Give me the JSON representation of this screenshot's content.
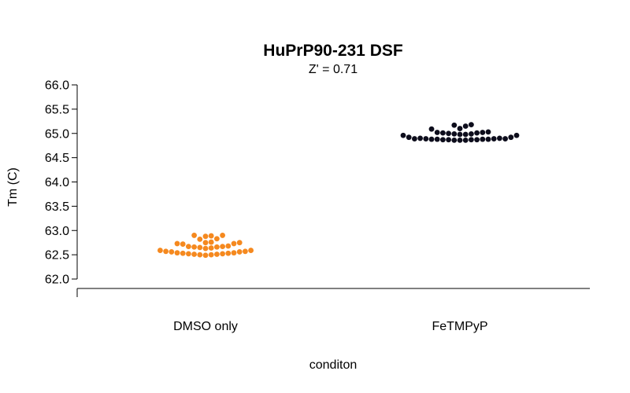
{
  "chart_data": {
    "type": "scatter",
    "subtype": "beeswarm",
    "title": "HuPrP90-231 DSF",
    "subtitle": "Z' = 0.71",
    "xlabel": "conditon",
    "ylabel": "Tm (C)",
    "categories": [
      "DMSO only",
      "FeTMPyP"
    ],
    "ylim": [
      61.8,
      66.2
    ],
    "yticks": [
      62.0,
      62.5,
      63.0,
      63.5,
      64.0,
      64.5,
      65.0,
      65.5,
      66.0
    ],
    "ytick_labels": [
      "62.0",
      "62.5",
      "63.0",
      "63.5",
      "64.0",
      "64.5",
      "65.0",
      "65.5",
      "66.0"
    ],
    "grid": false,
    "legend": "none",
    "series": [
      {
        "category": "DMSO only",
        "color": "#f5891f",
        "values": [
          62.59,
          62.57,
          62.56,
          62.54,
          62.53,
          62.52,
          62.51,
          62.5,
          62.49,
          62.5,
          62.51,
          62.52,
          62.53,
          62.54,
          62.56,
          62.57,
          62.59,
          62.63,
          62.64,
          62.65,
          62.66,
          62.67,
          62.68,
          62.67,
          62.66,
          62.72,
          62.73,
          62.75,
          62.76,
          62.75,
          62.73,
          62.82,
          62.83,
          62.88,
          62.89,
          62.9,
          62.9
        ]
      },
      {
        "category": "FeTMPyP",
        "color": "#0d0d1c",
        "values": [
          64.99,
          64.98,
          64.96,
          64.92,
          64.9,
          64.89,
          64.89,
          64.88,
          64.88,
          64.87,
          64.87,
          64.86,
          64.86,
          64.86,
          64.87,
          64.87,
          64.88,
          64.88,
          64.89,
          64.89,
          64.9,
          64.92,
          64.96,
          64.98,
          64.99,
          65.0,
          65.01,
          65.02,
          65.03,
          65.02,
          65.01,
          65.09,
          65.1,
          65.15,
          65.17,
          65.18
        ]
      }
    ]
  }
}
